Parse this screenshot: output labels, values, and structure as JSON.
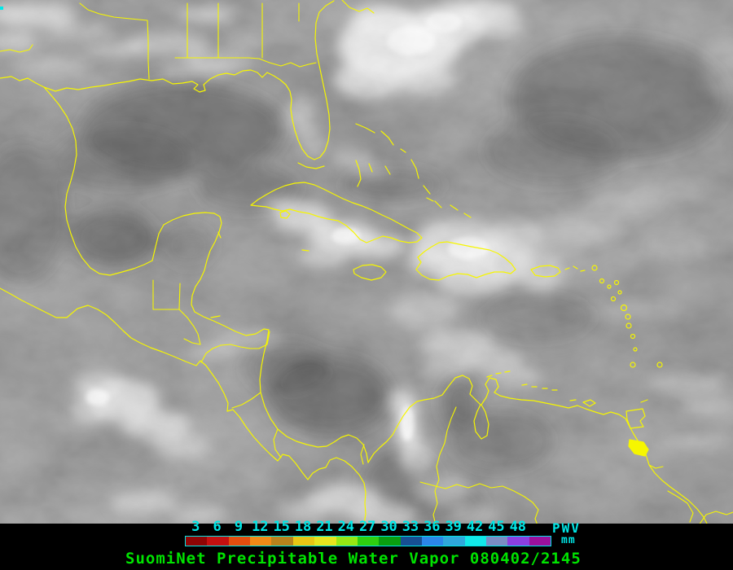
{
  "map": {
    "coastline_color": "#f6f600",
    "station_marker_color": "#00e8e8"
  },
  "colorbar": {
    "ticks": [
      "3",
      "6",
      "9",
      "12",
      "15",
      "18",
      "21",
      "24",
      "27",
      "30",
      "33",
      "36",
      "39",
      "42",
      "45",
      "48"
    ],
    "segment_colors": [
      "#8f0404",
      "#c41010",
      "#e44d0e",
      "#f08a16",
      "#b8821c",
      "#e8c614",
      "#e6e41e",
      "#97e713",
      "#2fcf10",
      "#0a9e10",
      "#174f93",
      "#2b86e8",
      "#2fa8dc",
      "#12e8e8",
      "#7b8dc4",
      "#8b3fe0",
      "#9c109c"
    ],
    "tick_color": "#00e6e6",
    "border_color": "#00e6e6",
    "unit_label": "PWV",
    "unit_sub": "mm"
  },
  "caption": {
    "text": "SuomiNet Precipitable Water Vapor 080402/2145",
    "color": "#00e300"
  }
}
